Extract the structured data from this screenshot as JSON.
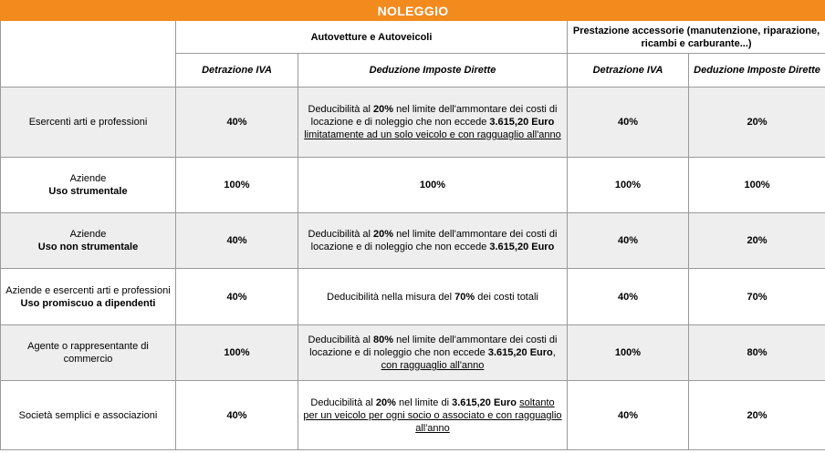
{
  "title": "NOLEGGIO",
  "header": {
    "group1": "Autovetture e Autoveicoli",
    "group2": "Prestazione accessorie (manutenzione, riparazione, ricambi e carburante...)",
    "sub1": "Detrazione IVA",
    "sub2": "Deduzione Imposte Dirette",
    "sub3": "Detrazione IVA",
    "sub4": "Deduzione Imposte Dirette"
  },
  "rows": [
    {
      "label": "Esercenti arti e professioni",
      "label_bold": "",
      "iva": "40%",
      "ded": {
        "p1": "Deducibilità al ",
        "b1": "20%",
        "p2": " nel limite dell'ammontare dei costi di locazione e di noleggio che non eccede ",
        "b2": "3.615,20 Euro",
        "u1": "limitatamente ad un solo veicolo e con ragguaglio all'anno"
      },
      "acc_iva": "40%",
      "acc_ded": "20%"
    },
    {
      "label": "Aziende",
      "label_bold": "Uso strumentale",
      "iva": "100%",
      "ded_text": "100%",
      "acc_iva": "100%",
      "acc_ded": "100%"
    },
    {
      "label": "Aziende",
      "label_bold": "Uso non strumentale",
      "iva": "40%",
      "ded": {
        "p1": "Deducibilità al ",
        "b1": "20%",
        "p2": " nel limite dell'ammontare dei costi di locazione e di noleggio che non eccede ",
        "b2": "3.615,20 Euro"
      },
      "acc_iva": "40%",
      "acc_ded": "20%"
    },
    {
      "label": "Aziende e esercenti arti e professioni",
      "label_bold": "Uso promiscuo a dipendenti",
      "iva": "40%",
      "ded": {
        "p1": "Deducibilità nella misura del ",
        "b1": "70%",
        "p2": " dei costi totali"
      },
      "acc_iva": "40%",
      "acc_ded": "70%"
    },
    {
      "label": "Agente o rappresentante di commercio",
      "label_bold": "",
      "iva": "100%",
      "ded": {
        "p1": "Deducibilità al ",
        "b1": "80%",
        "p2": " nel limite dell'ammontare dei costi di locazione e di noleggio che non eccede ",
        "b2": "3.615,20 Euro",
        "p3": ", ",
        "u1": "con ragguaglio all'anno"
      },
      "acc_iva": "100%",
      "acc_ded": "80%"
    },
    {
      "label": "Società semplici e associazioni",
      "label_bold": "",
      "iva": "40%",
      "ded": {
        "p1": "Deducibilità al ",
        "b1": "20%",
        "p2": " nel limite di ",
        "b2": "3.615,20 Euro",
        "p3": " ",
        "u1": "soltanto per un veicolo per ogni socio o associato e con ragguaglio all'anno"
      },
      "acc_iva": "40%",
      "acc_ded": "20%"
    }
  ]
}
